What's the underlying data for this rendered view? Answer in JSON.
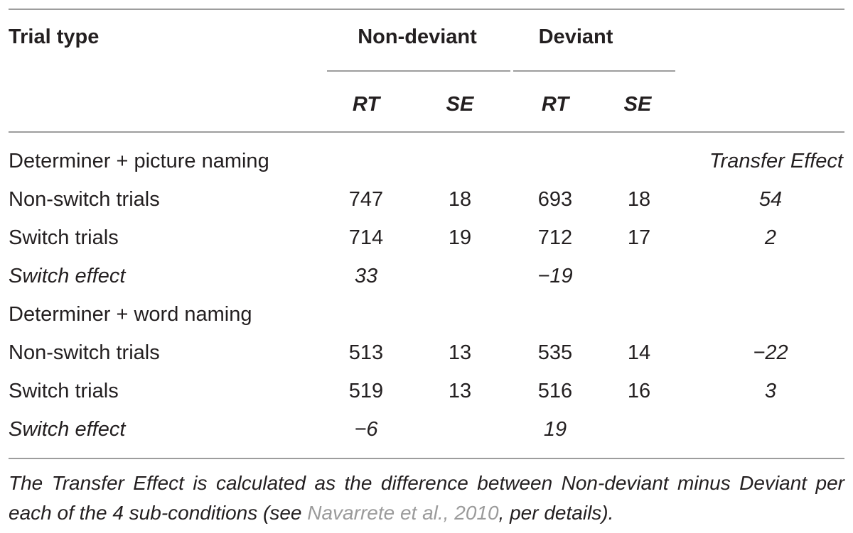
{
  "header": {
    "trial_type": "Trial type",
    "non_deviant": "Non-deviant",
    "deviant": "Deviant",
    "rt1": "RT",
    "se1": "SE",
    "rt2": "RT",
    "se2": "SE"
  },
  "sections": [
    {
      "label": "Determiner + picture naming",
      "extra_header": "Transfer Effect",
      "rows": [
        {
          "label": "Non-switch trials",
          "nd_rt": "747",
          "nd_se": "18",
          "d_rt": "693",
          "d_se": "18",
          "transfer": "54"
        },
        {
          "label": "Switch trials",
          "nd_rt": "714",
          "nd_se": "19",
          "d_rt": "712",
          "d_se": "17",
          "transfer": "2"
        }
      ],
      "switch_effect": {
        "label": "Switch effect",
        "nd": "33",
        "d": "−19"
      }
    },
    {
      "label": "Determiner + word naming",
      "rows": [
        {
          "label": "Non-switch trials",
          "nd_rt": "513",
          "nd_se": "13",
          "d_rt": "535",
          "d_se": "14",
          "transfer": "−22"
        },
        {
          "label": "Switch trials",
          "nd_rt": "519",
          "nd_se": "13",
          "d_rt": "516",
          "d_se": "16",
          "transfer": "3"
        }
      ],
      "switch_effect": {
        "label": "Switch effect",
        "nd": "−6",
        "d": "19"
      }
    }
  ],
  "footnote": {
    "before": "The Transfer Effect is calculated as the difference between Non-deviant minus Deviant per each of the 4 sub-conditions (see ",
    "link": "Navarrete et al., 2010",
    "after": ", per details)."
  }
}
